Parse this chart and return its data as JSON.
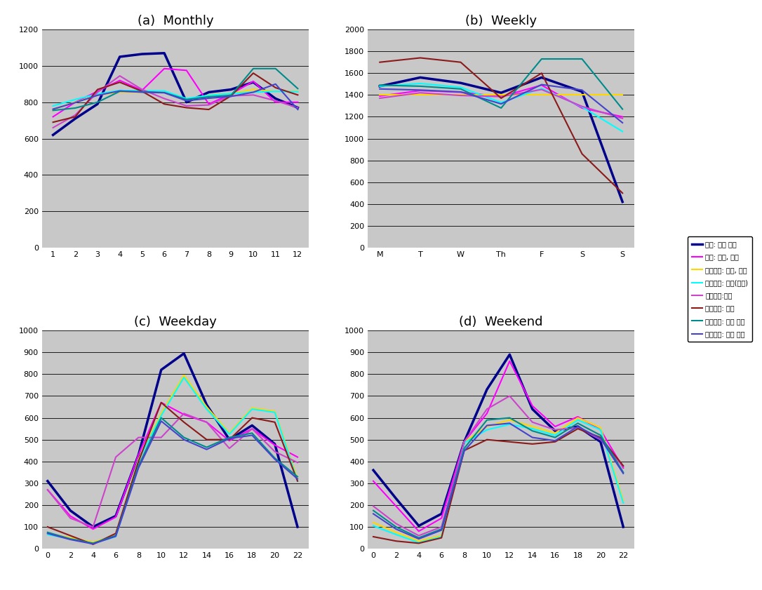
{
  "legend_labels": [
    "서울: 승용 싙합",
    "서울: 버스, 트럭",
    "서울외경: 승용, 택시",
    "서울외경: 승용(경형)",
    "서울외경:버스",
    "서울외경: 싙합",
    "서울외경: 트럭 소소",
    "서울외경: 트럭 대형"
  ],
  "colors": [
    "#00008B",
    "#FF00FF",
    "#FFD700",
    "#00FFFF",
    "#CC44CC",
    "#8B1A1A",
    "#008B8B",
    "#4444CC"
  ],
  "linewidths": [
    2.5,
    1.5,
    1.5,
    1.5,
    1.5,
    1.5,
    1.5,
    1.5
  ],
  "monthly_x": [
    1,
    2,
    3,
    4,
    5,
    6,
    7,
    8,
    9,
    10,
    11,
    12
  ],
  "monthly_data": [
    [
      620,
      710,
      790,
      1050,
      1065,
      1070,
      800,
      855,
      870,
      910,
      820,
      770
    ],
    [
      720,
      800,
      860,
      920,
      865,
      985,
      975,
      790,
      845,
      915,
      800,
      800
    ],
    [
      760,
      800,
      840,
      855,
      855,
      855,
      810,
      840,
      848,
      870,
      860,
      860
    ],
    [
      780,
      815,
      845,
      865,
      862,
      862,
      820,
      838,
      848,
      855,
      860,
      858
    ],
    [
      660,
      730,
      855,
      945,
      870,
      820,
      780,
      785,
      835,
      840,
      808,
      770
    ],
    [
      690,
      720,
      870,
      910,
      860,
      790,
      770,
      760,
      835,
      960,
      880,
      840
    ],
    [
      755,
      768,
      800,
      860,
      858,
      853,
      815,
      830,
      838,
      985,
      985,
      875
    ],
    [
      762,
      798,
      838,
      862,
      855,
      852,
      808,
      822,
      832,
      855,
      900,
      760
    ]
  ],
  "monthly_ylim": [
    0,
    1200
  ],
  "monthly_yticks": [
    0,
    200,
    400,
    600,
    800,
    1000,
    1200
  ],
  "weekly_x": [
    0,
    1,
    2,
    3,
    4,
    5,
    6
  ],
  "weekly_xlabels": [
    "M",
    "T",
    "W",
    "Th",
    "F",
    "S",
    "S"
  ],
  "weekly_data": [
    [
      1480,
      1560,
      1510,
      1420,
      1560,
      1430,
      420
    ],
    [
      1390,
      1440,
      1425,
      1385,
      1490,
      1280,
      1200
    ],
    [
      1400,
      1400,
      1400,
      1400,
      1400,
      1400,
      1400
    ],
    [
      1480,
      1505,
      1470,
      1330,
      1460,
      1290,
      1065
    ],
    [
      1370,
      1420,
      1395,
      1385,
      1450,
      1295,
      1185
    ],
    [
      1700,
      1740,
      1700,
      1370,
      1600,
      860,
      500
    ],
    [
      1490,
      1480,
      1455,
      1280,
      1730,
      1730,
      1270
    ],
    [
      1455,
      1445,
      1428,
      1318,
      1495,
      1445,
      1145
    ]
  ],
  "weekly_ylim": [
    0,
    2000
  ],
  "weekly_yticks": [
    0,
    200,
    400,
    600,
    800,
    1000,
    1200,
    1400,
    1600,
    1800,
    2000
  ],
  "hourly_x": [
    0,
    2,
    4,
    6,
    8,
    10,
    12,
    14,
    16,
    18,
    20,
    22
  ],
  "weekday_data": [
    [
      310,
      175,
      100,
      150,
      430,
      820,
      895,
      660,
      500,
      565,
      480,
      100
    ],
    [
      270,
      150,
      90,
      145,
      430,
      670,
      615,
      580,
      495,
      550,
      475,
      420
    ],
    [
      70,
      50,
      30,
      60,
      410,
      620,
      795,
      650,
      530,
      645,
      630,
      320
    ],
    [
      65,
      45,
      25,
      55,
      405,
      610,
      785,
      640,
      525,
      640,
      625,
      310
    ],
    [
      270,
      140,
      100,
      420,
      510,
      510,
      620,
      580,
      460,
      550,
      445,
      395
    ],
    [
      100,
      60,
      20,
      70,
      400,
      670,
      580,
      500,
      500,
      600,
      580,
      310
    ],
    [
      75,
      45,
      25,
      60,
      380,
      600,
      510,
      465,
      510,
      530,
      415,
      330
    ],
    [
      70,
      42,
      22,
      57,
      370,
      585,
      500,
      455,
      505,
      520,
      410,
      320
    ]
  ],
  "weekend_data": [
    [
      360,
      230,
      105,
      160,
      490,
      730,
      890,
      640,
      540,
      560,
      490,
      100
    ],
    [
      310,
      195,
      80,
      140,
      490,
      620,
      860,
      655,
      560,
      605,
      545,
      370
    ],
    [
      120,
      75,
      35,
      60,
      490,
      560,
      590,
      560,
      530,
      600,
      555,
      220
    ],
    [
      105,
      65,
      28,
      55,
      485,
      545,
      570,
      550,
      520,
      590,
      545,
      210
    ],
    [
      195,
      115,
      60,
      100,
      490,
      640,
      700,
      580,
      545,
      555,
      500,
      375
    ],
    [
      55,
      35,
      25,
      50,
      450,
      500,
      490,
      480,
      490,
      550,
      510,
      380
    ],
    [
      175,
      100,
      50,
      90,
      460,
      590,
      600,
      540,
      510,
      575,
      520,
      350
    ],
    [
      160,
      90,
      45,
      85,
      448,
      565,
      575,
      510,
      495,
      560,
      505,
      345
    ]
  ],
  "hourly_ylim": [
    0,
    1000
  ],
  "hourly_yticks": [
    0,
    100,
    200,
    300,
    400,
    500,
    600,
    700,
    800,
    900,
    1000
  ],
  "hourly_xticks": [
    0,
    2,
    4,
    6,
    8,
    10,
    12,
    14,
    16,
    18,
    20,
    22
  ],
  "bg_color": "#C8C8C8",
  "fig_color": "#FFFFFF",
  "title_a": "(a)  Monthly",
  "title_b": "(b)  Weekly",
  "title_c": "(c)  Weekday",
  "title_d": "(d)  Weekend"
}
